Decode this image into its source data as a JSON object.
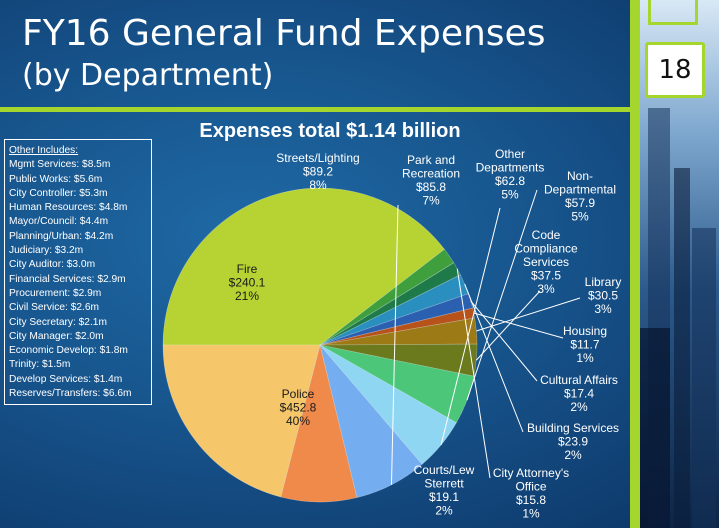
{
  "slide": {
    "title": "FY16 General Fund Expenses",
    "subtitle": "(by Department)",
    "page_number": "18"
  },
  "other_includes": {
    "heading": "Other Includes:",
    "items": [
      "Mgmt Services: $8.5m",
      "Public Works: $5.6m",
      "City Controller: $5.3m",
      "Human Resources: $4.8m",
      "Mayor/Council: $4.4m",
      "Planning/Urban: $4.2m",
      "Judiciary: $3.2m",
      "City Auditor: $3.0m",
      "Financial Services: $2.9m",
      "Procurement: $2.9m",
      "Civil Service: $2.6m",
      "City Secretary: $2.1m",
      "City Manager: $2.0m",
      "Economic Develop: $1.8m",
      "Trinity: $1.5m",
      "Develop Services: $1.4m",
      "Reserves/Transfers: $6.6m"
    ]
  },
  "chart_data": {
    "type": "pie",
    "title": "Expenses total $1.14 billion",
    "slices": [
      {
        "name": "Police",
        "value": 452.8,
        "value_label": "$452.8",
        "percent": "40%",
        "color": "#b7d233"
      },
      {
        "name": "Courts/Lew Sterrett",
        "value": 19.1,
        "value_label": "$19.1",
        "percent": "2%",
        "color": "#3f9f3c"
      },
      {
        "name": "City Attorney's Office",
        "value": 15.8,
        "value_label": "$15.8",
        "percent": "1%",
        "color": "#1f7a4a"
      },
      {
        "name": "Building Services",
        "value": 23.9,
        "value_label": "$23.9",
        "percent": "2%",
        "color": "#2a8fbf"
      },
      {
        "name": "Cultural Affairs",
        "value": 17.4,
        "value_label": "$17.4",
        "percent": "2%",
        "color": "#2b5fb0"
      },
      {
        "name": "Housing",
        "value": 11.7,
        "value_label": "$11.7",
        "percent": "1%",
        "color": "#b7521a"
      },
      {
        "name": "Library",
        "value": 30.5,
        "value_label": "$30.5",
        "percent": "3%",
        "color": "#9c7a16"
      },
      {
        "name": "Code Compliance Services",
        "value": 37.5,
        "value_label": "$37.5",
        "percent": "3%",
        "color": "#6b7a1c"
      },
      {
        "name": "Non-Departmental",
        "value": 57.9,
        "value_label": "$57.9",
        "percent": "5%",
        "color": "#4cc77a"
      },
      {
        "name": "Other Departments",
        "value": 62.8,
        "value_label": "$62.8",
        "percent": "5%",
        "color": "#8fd6f2"
      },
      {
        "name": "Park and Recreation",
        "value": 85.8,
        "value_label": "$85.8",
        "percent": "7%",
        "color": "#74aef0"
      },
      {
        "name": "Streets/Lighting",
        "value": 89.2,
        "value_label": "$89.2",
        "percent": "8%",
        "color": "#f08a4b"
      },
      {
        "name": "Fire",
        "value": 240.1,
        "value_label": "$240.1",
        "percent": "21%",
        "color": "#f5c66a"
      }
    ]
  }
}
